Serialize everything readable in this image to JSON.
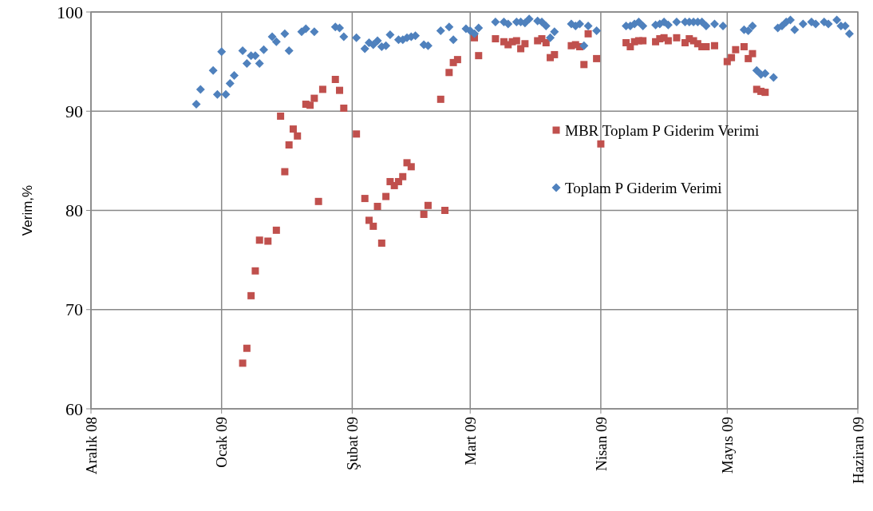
{
  "chart_data": {
    "type": "scatter",
    "ylabel": "Verim,%",
    "xlim": [
      "2008-12-01",
      "2009-06-01"
    ],
    "xticks": [
      {
        "value": "2008-12-01",
        "label": "Aralık 08"
      },
      {
        "value": "2009-01-01",
        "label": "Ocak 09"
      },
      {
        "value": "2009-02-01",
        "label": "Şubat 09"
      },
      {
        "value": "2009-03-01",
        "label": "Mart 09"
      },
      {
        "value": "2009-04-01",
        "label": "Nisan 09"
      },
      {
        "value": "2009-05-01",
        "label": "Mayıs 09"
      },
      {
        "value": "2009-06-01",
        "label": "Haziran 09"
      }
    ],
    "ylim": [
      60,
      100
    ],
    "yticks": [
      60,
      70,
      80,
      90,
      100
    ],
    "grid": true,
    "legend": "top right",
    "series": [
      {
        "name": "MBR Toplam P Giderim Verimi",
        "color": "#c0504d",
        "marker": "square",
        "x": [
          "2009-01-06",
          "2009-01-07",
          "2009-01-08",
          "2009-01-09",
          "2009-01-10",
          "2009-01-12",
          "2009-01-14",
          "2009-01-15",
          "2009-01-16",
          "2009-01-17",
          "2009-01-18",
          "2009-01-19",
          "2009-01-21",
          "2009-01-22",
          "2009-01-23",
          "2009-01-24",
          "2009-01-25",
          "2009-01-28",
          "2009-01-29",
          "2009-01-30",
          "2009-02-02",
          "2009-02-04",
          "2009-02-05",
          "2009-02-06",
          "2009-02-07",
          "2009-02-08",
          "2009-02-09",
          "2009-02-10",
          "2009-02-11",
          "2009-02-12",
          "2009-02-13",
          "2009-02-14",
          "2009-02-15",
          "2009-02-18",
          "2009-02-19",
          "2009-02-22",
          "2009-02-23",
          "2009-02-24",
          "2009-02-25",
          "2009-02-26",
          "2009-03-02",
          "2009-03-03",
          "2009-03-07",
          "2009-03-09",
          "2009-03-10",
          "2009-03-11",
          "2009-03-12",
          "2009-03-13",
          "2009-03-14",
          "2009-03-17",
          "2009-03-18",
          "2009-03-19",
          "2009-03-20",
          "2009-03-21",
          "2009-03-25",
          "2009-03-26",
          "2009-03-27",
          "2009-03-28",
          "2009-03-29",
          "2009-03-31",
          "2009-04-01",
          "2009-04-07",
          "2009-04-08",
          "2009-04-09",
          "2009-04-10",
          "2009-04-11",
          "2009-04-14",
          "2009-04-15",
          "2009-04-16",
          "2009-04-17",
          "2009-04-19",
          "2009-04-21",
          "2009-04-22",
          "2009-04-23",
          "2009-04-24",
          "2009-04-25",
          "2009-04-26",
          "2009-04-28",
          "2009-05-01",
          "2009-05-02",
          "2009-05-03",
          "2009-05-05",
          "2009-05-06",
          "2009-05-07",
          "2009-05-08",
          "2009-05-09",
          "2009-05-10"
        ],
        "values": [
          64.6,
          66.1,
          71.4,
          73.9,
          77.0,
          76.9,
          78.0,
          89.5,
          83.9,
          86.6,
          88.2,
          87.5,
          90.7,
          90.6,
          91.3,
          80.9,
          92.2,
          93.2,
          92.1,
          90.3,
          87.7,
          81.2,
          79.0,
          78.4,
          80.4,
          76.7,
          81.4,
          82.9,
          82.5,
          82.9,
          83.4,
          84.8,
          84.4,
          79.6,
          80.5,
          91.2,
          80.0,
          93.9,
          94.9,
          95.2,
          97.4,
          95.6,
          97.3,
          97.0,
          96.7,
          97.0,
          97.1,
          96.3,
          96.8,
          97.1,
          97.3,
          96.9,
          95.4,
          95.7,
          96.6,
          96.7,
          96.5,
          94.7,
          97.8,
          95.3,
          86.7,
          96.9,
          96.5,
          97.0,
          97.1,
          97.1,
          97.0,
          97.3,
          97.4,
          97.1,
          97.4,
          96.9,
          97.3,
          97.1,
          96.8,
          96.5,
          96.5,
          96.6,
          95.0,
          95.4,
          96.2,
          96.5,
          95.3,
          95.8,
          92.2,
          92.0,
          91.9
        ]
      },
      {
        "name": "Toplam P Giderim Verimi",
        "color": "#4f81bd",
        "marker": "diamond",
        "x": [
          "2008-12-26",
          "2008-12-27",
          "2008-12-30",
          "2008-12-31",
          "2009-01-01",
          "2009-01-02",
          "2009-01-03",
          "2009-01-04",
          "2009-01-06",
          "2009-01-07",
          "2009-01-08",
          "2009-01-09",
          "2009-01-10",
          "2009-01-11",
          "2009-01-13",
          "2009-01-14",
          "2009-01-16",
          "2009-01-17",
          "2009-01-20",
          "2009-01-21",
          "2009-01-23",
          "2009-01-28",
          "2009-01-29",
          "2009-01-30",
          "2009-02-02",
          "2009-02-04",
          "2009-02-05",
          "2009-02-06",
          "2009-02-07",
          "2009-02-08",
          "2009-02-09",
          "2009-02-10",
          "2009-02-12",
          "2009-02-13",
          "2009-02-14",
          "2009-02-15",
          "2009-02-16",
          "2009-02-18",
          "2009-02-19",
          "2009-02-22",
          "2009-02-24",
          "2009-02-25",
          "2009-02-28",
          "2009-03-01",
          "2009-03-02",
          "2009-03-03",
          "2009-03-07",
          "2009-03-09",
          "2009-03-10",
          "2009-03-12",
          "2009-03-13",
          "2009-03-14",
          "2009-03-15",
          "2009-03-17",
          "2009-03-18",
          "2009-03-19",
          "2009-03-20",
          "2009-03-21",
          "2009-03-25",
          "2009-03-26",
          "2009-03-27",
          "2009-03-28",
          "2009-03-29",
          "2009-03-31",
          "2009-04-07",
          "2009-04-08",
          "2009-04-09",
          "2009-04-10",
          "2009-04-11",
          "2009-04-14",
          "2009-04-15",
          "2009-04-16",
          "2009-04-17",
          "2009-04-19",
          "2009-04-21",
          "2009-04-22",
          "2009-04-23",
          "2009-04-24",
          "2009-04-25",
          "2009-04-26",
          "2009-04-28",
          "2009-04-30",
          "2009-05-05",
          "2009-05-06",
          "2009-05-07",
          "2009-05-08",
          "2009-05-09",
          "2009-05-10",
          "2009-05-12",
          "2009-05-13",
          "2009-05-14",
          "2009-05-15",
          "2009-05-16",
          "2009-05-17",
          "2009-05-19",
          "2009-05-21",
          "2009-05-22",
          "2009-05-24",
          "2009-05-25",
          "2009-05-27",
          "2009-05-28",
          "2009-05-29",
          "2009-05-30"
        ],
        "values": [
          90.7,
          92.2,
          94.1,
          91.7,
          96.0,
          91.7,
          92.8,
          93.6,
          96.1,
          94.8,
          95.6,
          95.6,
          94.8,
          96.2,
          97.5,
          97.0,
          97.8,
          96.1,
          98.0,
          98.3,
          98.0,
          98.5,
          98.4,
          97.5,
          97.4,
          96.3,
          96.9,
          96.7,
          97.1,
          96.5,
          96.6,
          97.7,
          97.2,
          97.2,
          97.4,
          97.5,
          97.6,
          96.7,
          96.6,
          98.1,
          98.5,
          97.2,
          98.3,
          98.1,
          97.8,
          98.4,
          99.0,
          99.0,
          98.8,
          99.0,
          99.0,
          98.9,
          99.3,
          99.1,
          99.0,
          98.6,
          97.4,
          98.0,
          98.8,
          98.6,
          98.8,
          96.6,
          98.6,
          98.1,
          98.6,
          98.6,
          98.8,
          99.0,
          98.6,
          98.7,
          98.8,
          99.0,
          98.7,
          99.0,
          99.0,
          99.0,
          99.0,
          99.0,
          99.0,
          98.6,
          98.8,
          98.6,
          98.2,
          98.1,
          98.6,
          94.1,
          93.7,
          93.8,
          93.4,
          98.4,
          98.6,
          99.0,
          99.2,
          98.2,
          98.8,
          99.0,
          98.8,
          99.0,
          98.8,
          99.2,
          98.6,
          98.6,
          97.8
        ]
      }
    ]
  }
}
